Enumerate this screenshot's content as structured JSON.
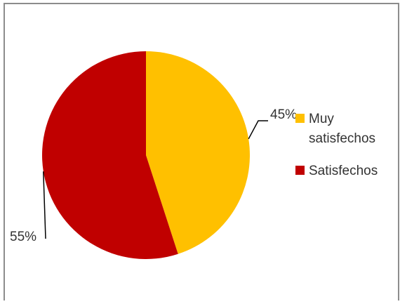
{
  "chart_data": {
    "type": "pie",
    "slices": [
      {
        "label": "Muy satisfechos",
        "label_lines": [
          "Muy",
          "satisfechos"
        ],
        "value": 45,
        "data_label": "45%",
        "color": "#FFC000"
      },
      {
        "label": "Satisfechos",
        "label_lines": [
          "Satisfechos"
        ],
        "value": 55,
        "data_label": "55%",
        "color": "#C00000"
      }
    ],
    "legend_position": "right",
    "start_angle_deg": 0,
    "direction": "clockwise"
  },
  "colors": {
    "frame_border": "#8c8c8c",
    "leader_line": "#000000",
    "label_text": "#333333"
  }
}
